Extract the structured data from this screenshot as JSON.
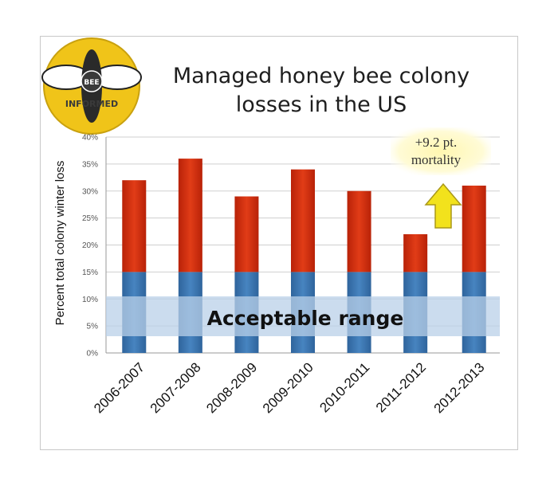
{
  "title": {
    "line1": "Managed honey bee colony",
    "line2": "losses in the US"
  },
  "logo": {
    "top": "BEE",
    "bottom": "INFORMED"
  },
  "band_label": "Acceptable range",
  "callout": {
    "line1": "+9.2 pt.",
    "line2": "mortality"
  },
  "colors": {
    "red": "#d63212",
    "blue": "#3f79b4",
    "band": "#b9d0e8",
    "arrow": "#f2e21c",
    "logo": "#f0c419"
  },
  "chart_data": {
    "type": "bar",
    "title": "Managed honey bee colony losses in the US",
    "ylabel": "Percent total colony winter loss",
    "xlabel": "",
    "categories": [
      "2006-2007",
      "2007-2008",
      "2008-2009",
      "2009-2010",
      "2010-2011",
      "2011-2012",
      "2012-2013"
    ],
    "values": [
      32,
      36,
      29,
      34,
      30,
      22,
      31
    ],
    "acceptable_max": 15,
    "ylim": [
      0,
      40
    ],
    "yticks": [
      "0%",
      "5%",
      "10%",
      "15%",
      "20%",
      "25%",
      "30%",
      "35%",
      "40%"
    ],
    "grid": true,
    "legend": "none"
  }
}
